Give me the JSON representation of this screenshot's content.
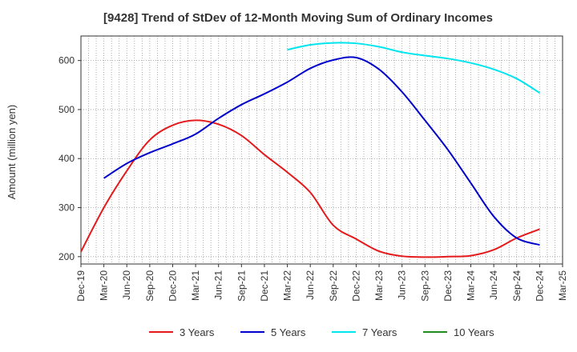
{
  "chart_data": {
    "type": "line",
    "title": "[9428]  Trend of StDev of 12-Month Moving Sum of Ordinary Incomes",
    "xlabel": "",
    "ylabel": "Amount (million yen)",
    "x_ticks": [
      "Dec-19",
      "Mar-20",
      "Jun-20",
      "Sep-20",
      "Dec-20",
      "Mar-21",
      "Jun-21",
      "Sep-21",
      "Dec-21",
      "Mar-22",
      "Jun-22",
      "Sep-22",
      "Dec-22",
      "Mar-23",
      "Jun-23",
      "Sep-23",
      "Dec-23",
      "Mar-24",
      "Jun-24",
      "Sep-24",
      "Dec-24",
      "Mar-25"
    ],
    "y_ticks": [
      200,
      300,
      400,
      500,
      600
    ],
    "ylim": [
      185,
      650
    ],
    "grid": true,
    "legend_position": "bottom",
    "series": [
      {
        "name": "3 Years",
        "color": "#e41a1c",
        "points": [
          [
            "Dec-19",
            210
          ],
          [
            "Mar-20",
            300
          ],
          [
            "Jun-20",
            375
          ],
          [
            "Sep-20",
            438
          ],
          [
            "Dec-20",
            468
          ],
          [
            "Mar-21",
            478
          ],
          [
            "Jun-21",
            470
          ],
          [
            "Sep-21",
            447
          ],
          [
            "Dec-21",
            408
          ],
          [
            "Mar-22",
            372
          ],
          [
            "Jun-22",
            331
          ],
          [
            "Sep-22",
            264
          ],
          [
            "Dec-22",
            236
          ],
          [
            "Mar-23",
            211
          ],
          [
            "Jun-23",
            201
          ],
          [
            "Sep-23",
            199
          ],
          [
            "Dec-23",
            200
          ],
          [
            "Mar-24",
            202
          ],
          [
            "Jun-24",
            214
          ],
          [
            "Sep-24",
            238
          ],
          [
            "Dec-24",
            256
          ]
        ]
      },
      {
        "name": "5 Years",
        "color": "#0000cc",
        "points": [
          [
            "Mar-20",
            360
          ],
          [
            "Jun-20",
            390
          ],
          [
            "Sep-20",
            412
          ],
          [
            "Dec-20",
            430
          ],
          [
            "Mar-21",
            450
          ],
          [
            "Jun-21",
            482
          ],
          [
            "Sep-21",
            510
          ],
          [
            "Dec-21",
            532
          ],
          [
            "Mar-22",
            556
          ],
          [
            "Jun-22",
            584
          ],
          [
            "Sep-22",
            601
          ],
          [
            "Dec-22",
            606
          ],
          [
            "Mar-23",
            582
          ],
          [
            "Jun-23",
            536
          ],
          [
            "Sep-23",
            478
          ],
          [
            "Dec-23",
            418
          ],
          [
            "Mar-24",
            350
          ],
          [
            "Jun-24",
            282
          ],
          [
            "Sep-24",
            238
          ],
          [
            "Dec-24",
            224
          ]
        ]
      },
      {
        "name": "7 Years",
        "color": "#00e5ee",
        "points": [
          [
            "Mar-22",
            622
          ],
          [
            "Jun-22",
            632
          ],
          [
            "Sep-22",
            636
          ],
          [
            "Dec-22",
            635
          ],
          [
            "Mar-23",
            628
          ],
          [
            "Jun-23",
            617
          ],
          [
            "Sep-23",
            610
          ],
          [
            "Dec-23",
            604
          ],
          [
            "Mar-24",
            595
          ],
          [
            "Jun-24",
            582
          ],
          [
            "Sep-24",
            563
          ],
          [
            "Dec-24",
            534
          ]
        ]
      },
      {
        "name": "10 Years",
        "color": "#228b22",
        "points": []
      }
    ]
  }
}
